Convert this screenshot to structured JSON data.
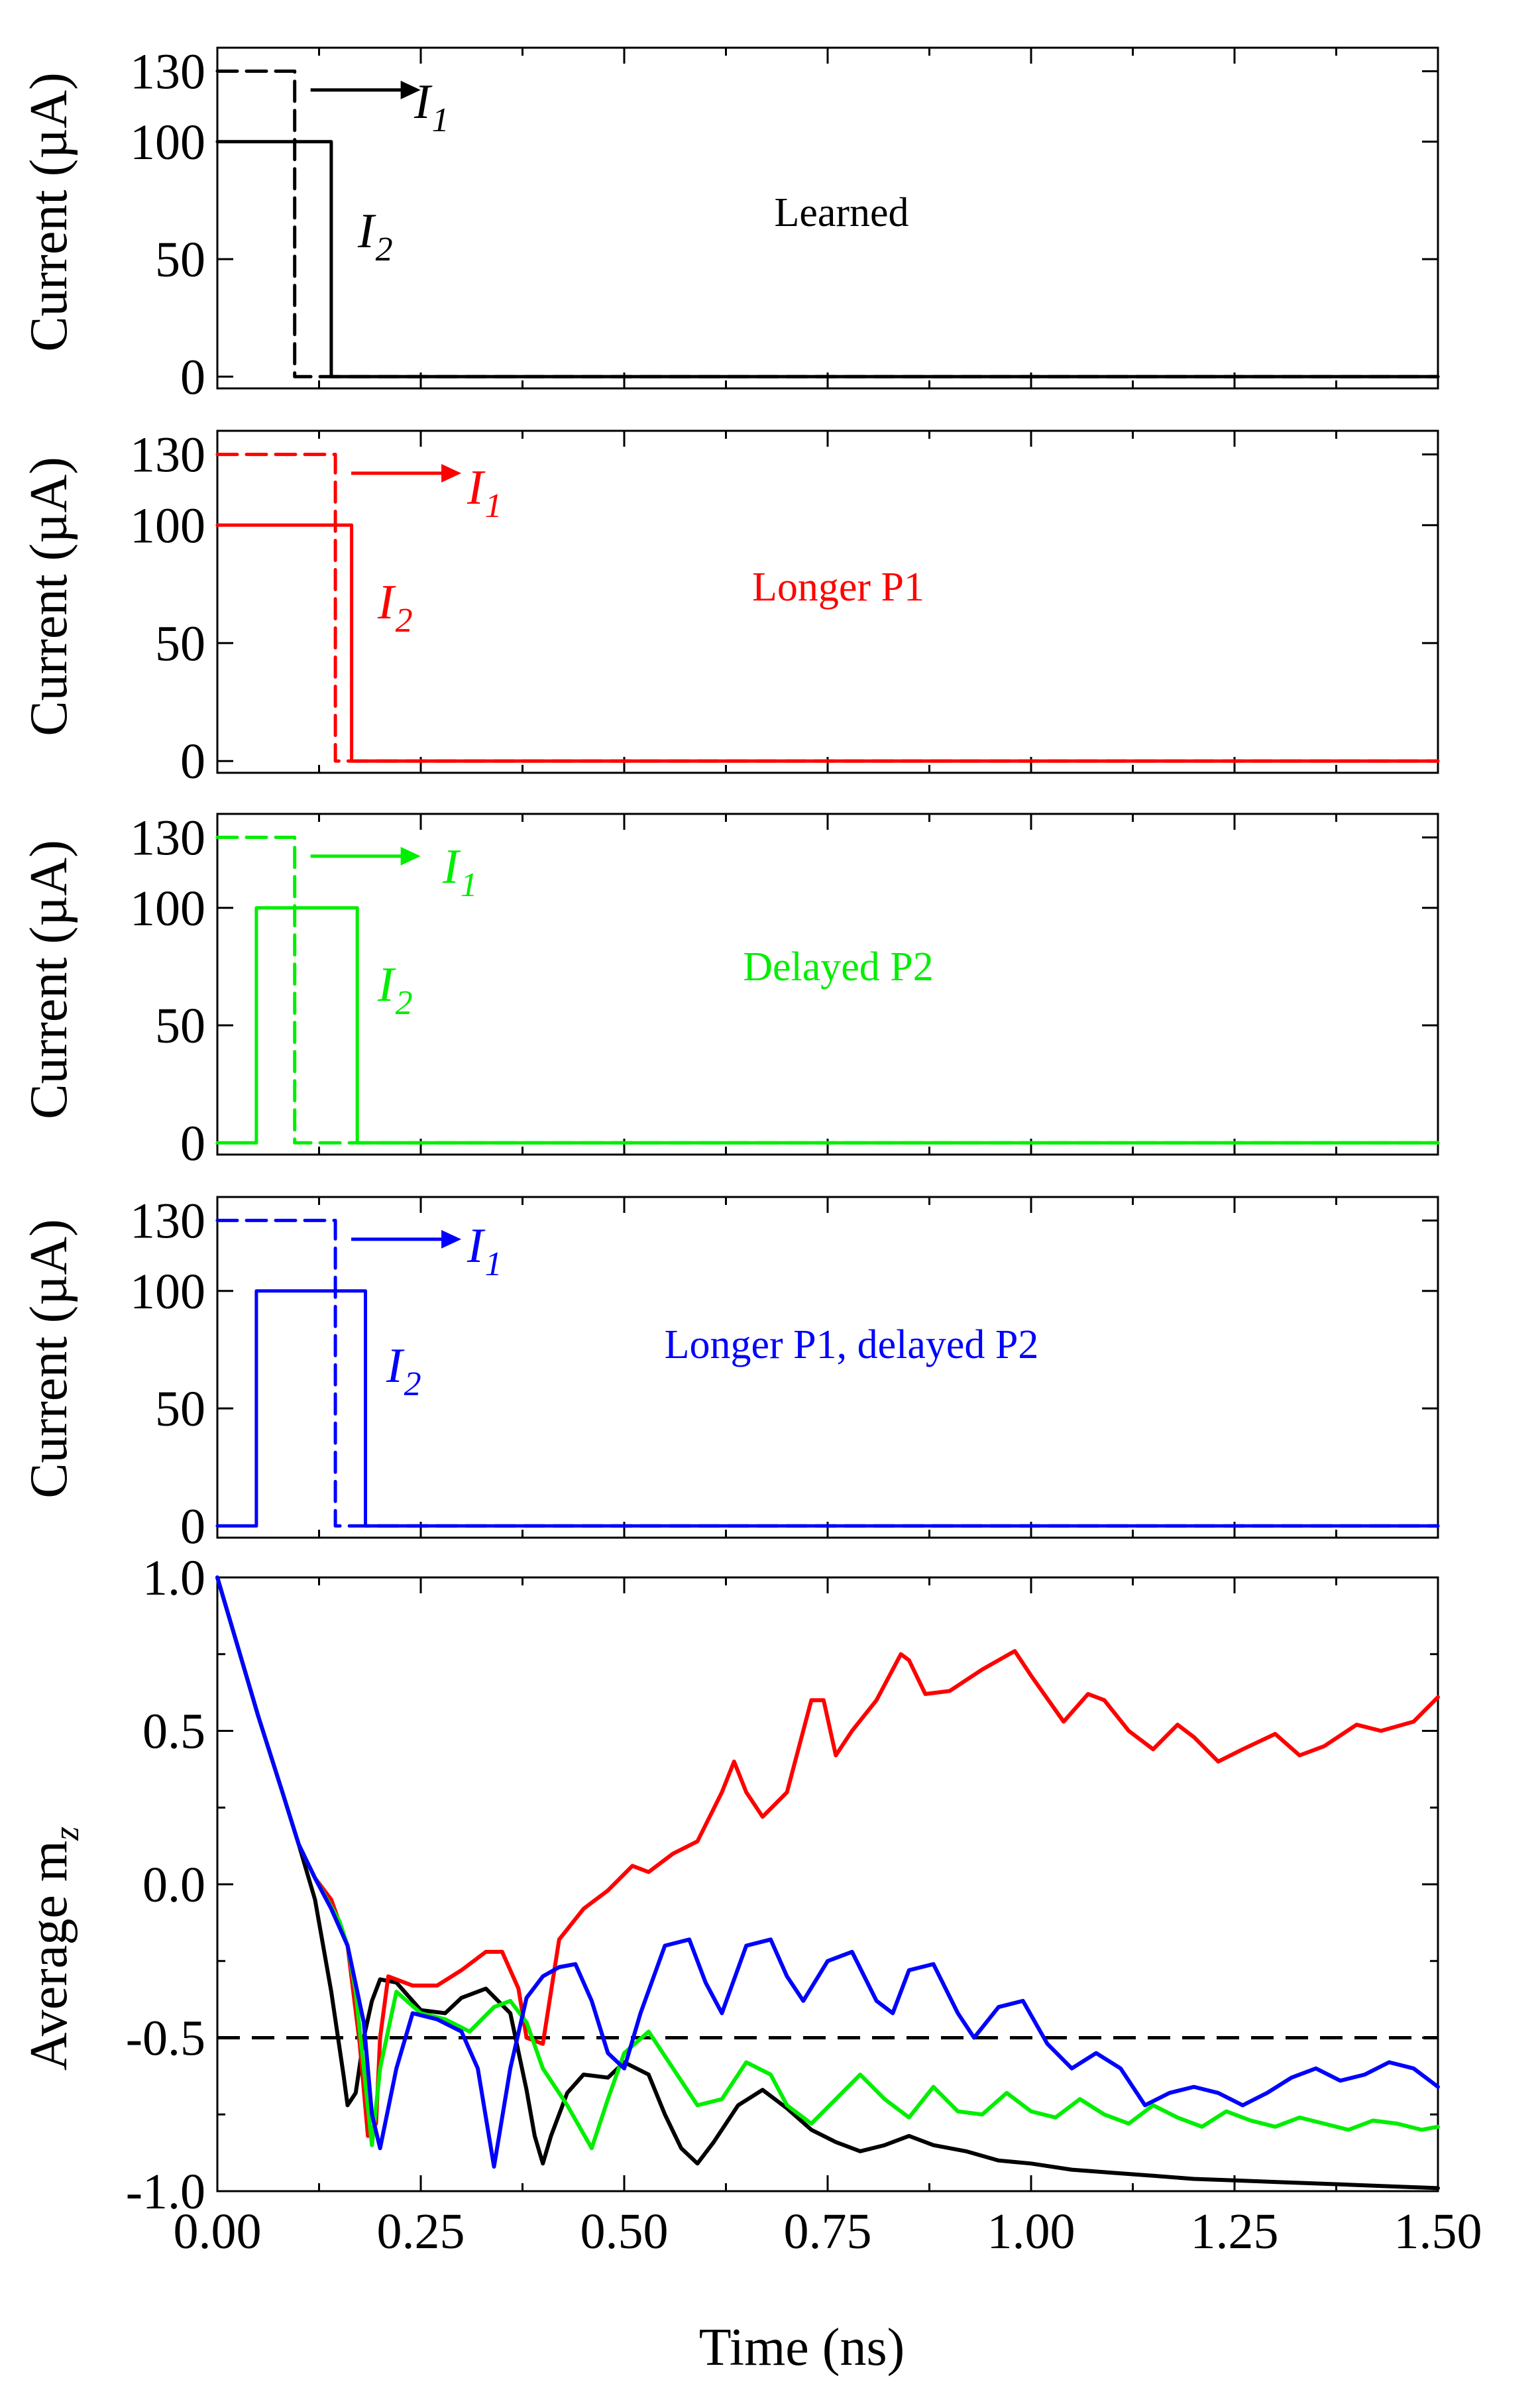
{
  "chart_data": [
    {
      "type": "line",
      "panel": "learned",
      "annotation": "Learned",
      "color": "#000000",
      "ylabel": "Current (µA)",
      "xlim": [
        0,
        1.5
      ],
      "ylim": [
        -5,
        140
      ],
      "yticks": [
        "0",
        "50",
        "100",
        "130"
      ],
      "series": [
        {
          "name": "I1",
          "sub": "1",
          "style": "dashed",
          "x": [
            0,
            0.095,
            0.095,
            1.5
          ],
          "y": [
            130,
            130,
            0,
            0
          ]
        },
        {
          "name": "I2",
          "sub": "2",
          "style": "solid",
          "x": [
            0,
            0.14,
            0.14,
            1.5
          ],
          "y": [
            100,
            100,
            0,
            0
          ]
        }
      ]
    },
    {
      "type": "line",
      "panel": "longer-p1",
      "annotation": "Longer P1",
      "color": "#ff0000",
      "ylabel": "Current (µA)",
      "xlim": [
        0,
        1.5
      ],
      "ylim": [
        -5,
        140
      ],
      "yticks": [
        "0",
        "50",
        "100",
        "130"
      ],
      "series": [
        {
          "name": "I1",
          "sub": "1",
          "style": "dashed",
          "x": [
            0,
            0.145,
            0.145,
            1.5
          ],
          "y": [
            130,
            130,
            0,
            0
          ]
        },
        {
          "name": "I2",
          "sub": "2",
          "style": "solid",
          "x": [
            0,
            0.165,
            0.165,
            1.5
          ],
          "y": [
            100,
            100,
            0,
            0
          ]
        }
      ]
    },
    {
      "type": "line",
      "panel": "delayed-p2",
      "annotation": "Delayed P2",
      "color": "#00ee00",
      "ylabel": "Current (µA)",
      "xlim": [
        0,
        1.5
      ],
      "ylim": [
        -5,
        140
      ],
      "yticks": [
        "0",
        "50",
        "100",
        "130"
      ],
      "series": [
        {
          "name": "I1",
          "sub": "1",
          "style": "dashed",
          "x": [
            0,
            0.095,
            0.095,
            1.5
          ],
          "y": [
            130,
            130,
            0,
            0
          ]
        },
        {
          "name": "I2",
          "sub": "2",
          "style": "solid",
          "x": [
            0,
            0.048,
            0.048,
            0.172,
            0.172,
            1.5
          ],
          "y": [
            0,
            0,
            100,
            100,
            0,
            0
          ]
        }
      ]
    },
    {
      "type": "line",
      "panel": "longer-p1-delayed-p2",
      "annotation": "Longer P1, delayed P2",
      "color": "#0000ff",
      "ylabel": "Current (µA)",
      "xlim": [
        0,
        1.5
      ],
      "ylim": [
        -5,
        140
      ],
      "yticks": [
        "0",
        "50",
        "100",
        "130"
      ],
      "series": [
        {
          "name": "I1",
          "sub": "1",
          "style": "dashed",
          "x": [
            0,
            0.145,
            0.145,
            1.5
          ],
          "y": [
            130,
            130,
            0,
            0
          ]
        },
        {
          "name": "I2",
          "sub": "2",
          "style": "solid",
          "x": [
            0,
            0.048,
            0.048,
            0.182,
            0.182,
            1.5
          ],
          "y": [
            0,
            0,
            100,
            100,
            0,
            0
          ]
        }
      ]
    },
    {
      "type": "line",
      "panel": "average-mz",
      "ylabel": "Average m",
      "ylabel_sub": "z",
      "xlabel": "Time (ns)",
      "xlim": [
        0,
        1.5
      ],
      "ylim": [
        -1.0,
        1.0
      ],
      "xticks": [
        "0.00",
        "0.25",
        "0.50",
        "0.75",
        "1.00",
        "1.25",
        "1.50"
      ],
      "yticks": [
        "-1.0",
        "-0.5",
        "0.0",
        "0.5",
        "1.0"
      ],
      "reference_line": {
        "y": -0.5,
        "style": "dashed",
        "color": "#000000"
      },
      "series": [
        {
          "name": "Learned",
          "color": "#000000",
          "x": [
            0,
            0.02,
            0.05,
            0.08,
            0.1,
            0.12,
            0.14,
            0.155,
            0.16,
            0.17,
            0.18,
            0.19,
            0.2,
            0.22,
            0.25,
            0.28,
            0.3,
            0.33,
            0.36,
            0.38,
            0.39,
            0.4,
            0.41,
            0.43,
            0.45,
            0.48,
            0.5,
            0.53,
            0.55,
            0.57,
            0.59,
            0.61,
            0.64,
            0.67,
            0.7,
            0.73,
            0.76,
            0.79,
            0.82,
            0.85,
            0.88,
            0.92,
            0.96,
            1.0,
            1.05,
            1.1,
            1.15,
            1.2,
            1.25,
            1.3,
            1.35,
            1.4,
            1.45,
            1.5
          ],
          "y": [
            1.0,
            0.82,
            0.55,
            0.3,
            0.13,
            -0.05,
            -0.35,
            -0.62,
            -0.72,
            -0.68,
            -0.5,
            -0.38,
            -0.31,
            -0.32,
            -0.41,
            -0.42,
            -0.37,
            -0.34,
            -0.42,
            -0.67,
            -0.82,
            -0.91,
            -0.82,
            -0.68,
            -0.62,
            -0.63,
            -0.58,
            -0.62,
            -0.75,
            -0.86,
            -0.91,
            -0.84,
            -0.72,
            -0.67,
            -0.73,
            -0.8,
            -0.84,
            -0.87,
            -0.85,
            -0.82,
            -0.85,
            -0.87,
            -0.9,
            -0.91,
            -0.93,
            -0.94,
            -0.95,
            -0.96,
            -0.965,
            -0.97,
            -0.975,
            -0.98,
            -0.985,
            -0.99
          ]
        },
        {
          "name": "Longer P1",
          "color": "#ff0000",
          "x": [
            0,
            0.02,
            0.05,
            0.08,
            0.1,
            0.12,
            0.14,
            0.16,
            0.175,
            0.185,
            0.195,
            0.2,
            0.21,
            0.24,
            0.27,
            0.3,
            0.33,
            0.35,
            0.37,
            0.38,
            0.4,
            0.42,
            0.45,
            0.48,
            0.51,
            0.53,
            0.56,
            0.59,
            0.62,
            0.635,
            0.65,
            0.67,
            0.7,
            0.73,
            0.745,
            0.76,
            0.78,
            0.81,
            0.84,
            0.85,
            0.87,
            0.9,
            0.94,
            0.98,
            1.0,
            1.04,
            1.07,
            1.09,
            1.12,
            1.15,
            1.18,
            1.2,
            1.23,
            1.26,
            1.3,
            1.33,
            1.36,
            1.4,
            1.43,
            1.47,
            1.5
          ],
          "y": [
            1.0,
            0.82,
            0.55,
            0.3,
            0.13,
            0.02,
            -0.05,
            -0.2,
            -0.52,
            -0.82,
            -0.78,
            -0.5,
            -0.3,
            -0.33,
            -0.33,
            -0.28,
            -0.22,
            -0.22,
            -0.34,
            -0.5,
            -0.52,
            -0.18,
            -0.08,
            -0.02,
            0.06,
            0.04,
            0.1,
            0.14,
            0.3,
            0.4,
            0.3,
            0.22,
            0.3,
            0.6,
            0.6,
            0.42,
            0.5,
            0.6,
            0.75,
            0.73,
            0.62,
            0.63,
            0.7,
            0.76,
            0.68,
            0.53,
            0.62,
            0.6,
            0.5,
            0.44,
            0.52,
            0.48,
            0.4,
            0.44,
            0.49,
            0.42,
            0.45,
            0.52,
            0.5,
            0.53,
            0.61
          ]
        },
        {
          "name": "Delayed P2",
          "color": "#00ee00",
          "x": [
            0,
            0.02,
            0.05,
            0.08,
            0.1,
            0.12,
            0.15,
            0.16,
            0.17,
            0.18,
            0.19,
            0.2,
            0.22,
            0.25,
            0.28,
            0.31,
            0.34,
            0.36,
            0.38,
            0.4,
            0.43,
            0.46,
            0.48,
            0.5,
            0.53,
            0.56,
            0.59,
            0.62,
            0.65,
            0.68,
            0.7,
            0.73,
            0.76,
            0.79,
            0.82,
            0.85,
            0.88,
            0.91,
            0.94,
            0.97,
            1.0,
            1.03,
            1.06,
            1.09,
            1.12,
            1.15,
            1.18,
            1.21,
            1.24,
            1.27,
            1.3,
            1.33,
            1.36,
            1.39,
            1.42,
            1.45,
            1.48,
            1.5
          ],
          "y": [
            1.0,
            0.82,
            0.55,
            0.3,
            0.13,
            0.02,
            -0.12,
            -0.2,
            -0.35,
            -0.6,
            -0.85,
            -0.6,
            -0.35,
            -0.42,
            -0.44,
            -0.48,
            -0.4,
            -0.38,
            -0.45,
            -0.6,
            -0.72,
            -0.86,
            -0.7,
            -0.55,
            -0.48,
            -0.6,
            -0.72,
            -0.7,
            -0.58,
            -0.62,
            -0.72,
            -0.78,
            -0.7,
            -0.62,
            -0.7,
            -0.76,
            -0.66,
            -0.74,
            -0.75,
            -0.68,
            -0.74,
            -0.76,
            -0.7,
            -0.75,
            -0.78,
            -0.72,
            -0.76,
            -0.79,
            -0.74,
            -0.77,
            -0.79,
            -0.76,
            -0.78,
            -0.8,
            -0.77,
            -0.78,
            -0.8,
            -0.79
          ]
        },
        {
          "name": "Longer P1, delayed P2",
          "color": "#0000ff",
          "x": [
            0,
            0.02,
            0.05,
            0.08,
            0.1,
            0.12,
            0.14,
            0.16,
            0.18,
            0.19,
            0.2,
            0.22,
            0.24,
            0.27,
            0.3,
            0.32,
            0.34,
            0.36,
            0.38,
            0.4,
            0.42,
            0.44,
            0.46,
            0.48,
            0.5,
            0.52,
            0.55,
            0.58,
            0.6,
            0.62,
            0.65,
            0.68,
            0.7,
            0.72,
            0.75,
            0.78,
            0.81,
            0.83,
            0.85,
            0.88,
            0.91,
            0.93,
            0.96,
            0.99,
            1.02,
            1.05,
            1.08,
            1.11,
            1.14,
            1.17,
            1.2,
            1.23,
            1.26,
            1.29,
            1.32,
            1.35,
            1.38,
            1.41,
            1.44,
            1.47,
            1.5
          ],
          "y": [
            1.0,
            0.82,
            0.55,
            0.3,
            0.13,
            0.02,
            -0.08,
            -0.2,
            -0.45,
            -0.75,
            -0.86,
            -0.6,
            -0.42,
            -0.44,
            -0.48,
            -0.6,
            -0.92,
            -0.6,
            -0.37,
            -0.3,
            -0.27,
            -0.26,
            -0.38,
            -0.55,
            -0.6,
            -0.42,
            -0.2,
            -0.18,
            -0.32,
            -0.42,
            -0.2,
            -0.18,
            -0.3,
            -0.38,
            -0.25,
            -0.22,
            -0.38,
            -0.42,
            -0.28,
            -0.26,
            -0.42,
            -0.5,
            -0.4,
            -0.38,
            -0.52,
            -0.6,
            -0.55,
            -0.6,
            -0.72,
            -0.68,
            -0.66,
            -0.68,
            -0.72,
            -0.68,
            -0.63,
            -0.6,
            -0.64,
            -0.62,
            -0.58,
            -0.6,
            -0.66
          ]
        }
      ]
    }
  ]
}
